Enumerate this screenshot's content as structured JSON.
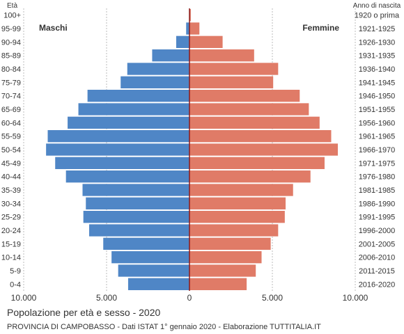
{
  "chart_data": {
    "type": "bar",
    "title": "Popolazione per età e sesso - 2020",
    "subtitle": "PROVINCIA DI CAMPOBASSO - Dati ISTAT 1° gennaio 2020 - Elaborazione TUTTITALIA.IT",
    "left_axis_header": "Età",
    "right_axis_header": "Anno di nascita",
    "male_label": "Maschi",
    "female_label": "Femmine",
    "colors": {
      "male": "#4f86c6",
      "female": "#e07b67",
      "grid": "#bbbbbb",
      "zero_line": "#8b1a1a"
    },
    "xlim": [
      -10000,
      10000
    ],
    "x_ticks": [
      -10000,
      -5000,
      0,
      5000,
      10000
    ],
    "x_tick_labels": [
      "10.000",
      "5.000",
      "0",
      "5.000",
      "10.000"
    ],
    "grid": true,
    "age_groups": [
      "100+",
      "95-99",
      "90-94",
      "85-89",
      "80-84",
      "75-79",
      "70-74",
      "65-69",
      "60-64",
      "55-59",
      "50-54",
      "45-49",
      "40-44",
      "35-39",
      "30-34",
      "25-29",
      "20-24",
      "15-19",
      "10-14",
      "5-9",
      "0-4"
    ],
    "birth_years": [
      "1920 o prima",
      "1921-1925",
      "1926-1930",
      "1931-1935",
      "1936-1940",
      "1941-1945",
      "1946-1950",
      "1951-1955",
      "1956-1960",
      "1961-1965",
      "1966-1970",
      "1971-1975",
      "1976-1980",
      "1981-1985",
      "1986-1990",
      "1991-1995",
      "1996-2000",
      "2001-2005",
      "2006-2010",
      "2011-2015",
      "2016-2020"
    ],
    "series": [
      {
        "name": "Maschi",
        "values": [
          20,
          200,
          800,
          2250,
          3750,
          4150,
          6150,
          6700,
          7350,
          8550,
          8650,
          8100,
          7450,
          6450,
          6250,
          6400,
          6050,
          5200,
          4700,
          4300,
          3700
        ]
      },
      {
        "name": "Femmine",
        "values": [
          80,
          600,
          2000,
          3900,
          5350,
          5050,
          6650,
          7200,
          7850,
          8550,
          8950,
          8150,
          7300,
          6250,
          5800,
          5750,
          5350,
          4900,
          4350,
          4000,
          3450
        ]
      }
    ]
  }
}
